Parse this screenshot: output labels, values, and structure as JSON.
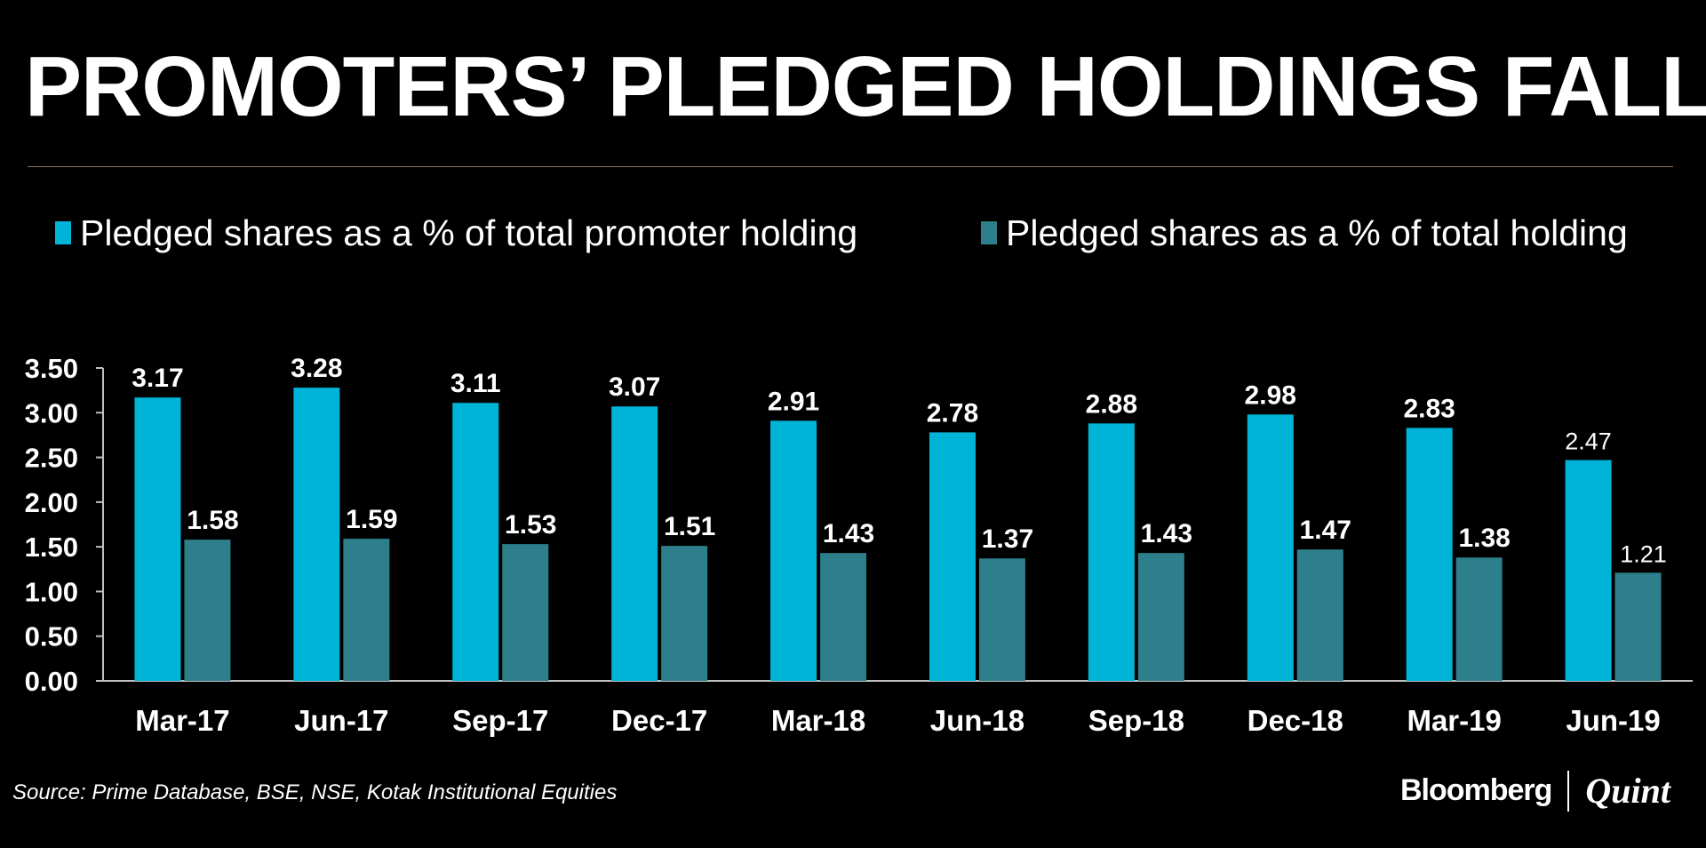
{
  "title": "PROMOTERS’ PLEDGED HOLDINGS FALL",
  "source": "Source:  Prime Database, BSE, NSE, Kotak Institutional Equities",
  "brand": {
    "left": "Bloomberg",
    "right": "Quint"
  },
  "colors": {
    "background": "#000000",
    "series1": "#00b4d8",
    "series2": "#2e7f8c",
    "text": "#ffffff",
    "rule": "#8b6a56",
    "axis": "#bfbfbf"
  },
  "chart_data": {
    "type": "bar",
    "title": "PROMOTERS’ PLEDGED HOLDINGS FALL",
    "xlabel": "",
    "ylabel": "",
    "ylim": [
      0,
      3.5
    ],
    "yticks": [
      "0.00",
      "0.50",
      "1.00",
      "1.50",
      "2.00",
      "2.50",
      "3.00",
      "3.50"
    ],
    "grid": false,
    "legend_position": "top",
    "categories": [
      "Mar-17",
      "Jun-17",
      "Sep-17",
      "Dec-17",
      "Mar-18",
      "Jun-18",
      "Sep-18",
      "Dec-18",
      "Mar-19",
      "Jun-19"
    ],
    "series": [
      {
        "name": "Pledged shares as a % of total promoter holding",
        "values": [
          3.17,
          3.28,
          3.11,
          3.07,
          2.91,
          2.78,
          2.88,
          2.98,
          2.83,
          2.47
        ],
        "labels": [
          "3.17",
          "3.28",
          "3.11",
          "3.07",
          "2.91",
          "2.78",
          "2.88",
          "2.98",
          "2.83",
          "2.47"
        ]
      },
      {
        "name": "Pledged shares as a % of total holding",
        "values": [
          1.58,
          1.59,
          1.53,
          1.51,
          1.43,
          1.37,
          1.43,
          1.47,
          1.38,
          1.21
        ],
        "labels": [
          "1.58",
          "1.59",
          "1.53",
          "1.51",
          "1.43",
          "1.37",
          "1.43",
          "1.47",
          "1.38",
          "1.21"
        ]
      }
    ]
  }
}
